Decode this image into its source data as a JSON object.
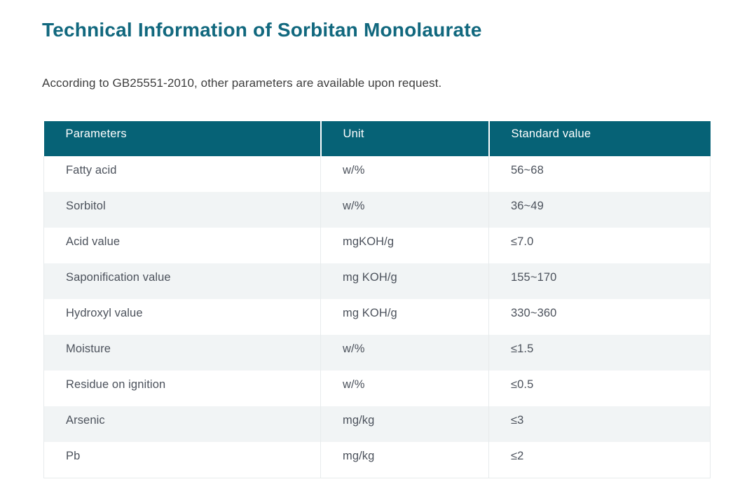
{
  "page": {
    "title": "Technical Information of Sorbitan Monolaurate",
    "subtitle": "According to GB25551-2010, other parameters are available upon request."
  },
  "colors": {
    "title_teal": "#11687e",
    "header_teal": "#066276",
    "row_alt_gray": "#f1f4f5",
    "body_text": "#4c525c",
    "border_gray": "#e7ebec"
  },
  "table": {
    "columns": [
      "Parameters",
      "Unit",
      "Standard value"
    ],
    "rows": [
      {
        "parameter": "Fatty acid",
        "unit": "w/%",
        "standard_value": "56~68"
      },
      {
        "parameter": "Sorbitol",
        "unit": "w/%",
        "standard_value": "36~49"
      },
      {
        "parameter": "Acid value",
        "unit": "mgKOH/g",
        "standard_value": "≤7.0"
      },
      {
        "parameter": "Saponification value",
        "unit": "mg KOH/g",
        "standard_value": "155~170"
      },
      {
        "parameter": "Hydroxyl value",
        "unit": "mg KOH/g",
        "standard_value": "330~360"
      },
      {
        "parameter": "Moisture",
        "unit": "w/%",
        "standard_value": "≤1.5"
      },
      {
        "parameter": "Residue on ignition",
        "unit": "w/%",
        "standard_value": "≤0.5"
      },
      {
        "parameter": "Arsenic",
        "unit": "mg/kg",
        "standard_value": "≤3"
      },
      {
        "parameter": "Pb",
        "unit": "mg/kg",
        "standard_value": "≤2"
      }
    ]
  }
}
